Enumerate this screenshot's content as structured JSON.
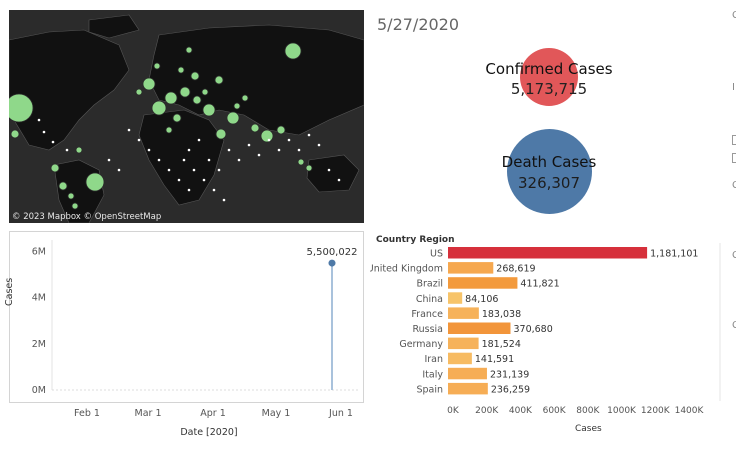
{
  "map": {
    "attribution": "© 2023 Mapbox © OpenStreetMap",
    "background_color": "#2b2b2b",
    "land_color": "#111111",
    "bubble_color": "#8fd88a"
  },
  "date": "5/27/2020",
  "kpis": {
    "confirmed": {
      "title": "Confirmed Cases",
      "value": "5,173,715",
      "color": "#e15759"
    },
    "deaths": {
      "title": "Death Cases",
      "value": "326,307",
      "color": "#4e79a7"
    }
  },
  "timeline": {
    "x_axis_label": "Date [2020]",
    "y_axis_label": "Cases",
    "x_ticks": [
      "Feb 1",
      "Mar 1",
      "Apr 1",
      "May 1",
      "Jun 1"
    ],
    "y_ticks": [
      "6M",
      "4M",
      "2M",
      "0M"
    ],
    "point_label": "5,500,022",
    "point_color": "#4e79a7"
  },
  "chart_data": {
    "type": "bar",
    "orientation": "horizontal",
    "title": "",
    "category_axis_label": "Country Region",
    "xlabel": "Cases",
    "categories": [
      "US",
      "United Kingdom",
      "Brazil",
      "China",
      "France",
      "Russia",
      "Germany",
      "Iran",
      "Italy",
      "Spain"
    ],
    "values": [
      1181101,
      268619,
      411821,
      84106,
      183038,
      370680,
      181524,
      141591,
      231139,
      236259
    ],
    "value_labels": [
      "1,181,101",
      "268,619",
      "411,821",
      "84,106",
      "183,038",
      "370,680",
      "181,524",
      "141,591",
      "231,139",
      "236,259"
    ],
    "colors": [
      "#d6303b",
      "#f6a84f",
      "#f39a3c",
      "#f7c46a",
      "#f6b25a",
      "#f2953a",
      "#f6b25a",
      "#f7bb62",
      "#f6ad55",
      "#f6ad55"
    ],
    "xlim": [
      0,
      1600000
    ],
    "x_ticks": [
      "0K",
      "200K",
      "400K",
      "600K",
      "800K",
      "1000K",
      "1200K",
      "1400K"
    ],
    "grid": false,
    "legend": "none"
  }
}
